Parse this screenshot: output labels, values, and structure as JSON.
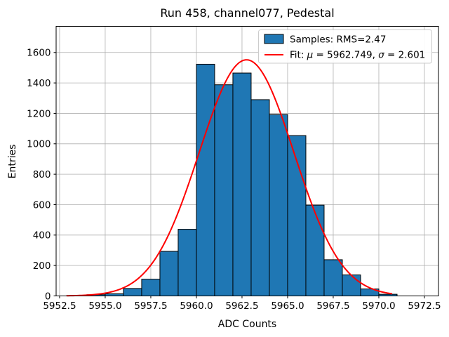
{
  "window": {
    "background": "#ffffff"
  },
  "chart_data": {
    "type": "bar",
    "subtype": "histogram",
    "title": "Run 458, channel077, Pedestal",
    "xlabel": "ADC Counts",
    "ylabel": "Entries",
    "bin_edges": [
      5954,
      5955,
      5956,
      5957,
      5958,
      5959,
      5960,
      5961,
      5962,
      5963,
      5964,
      5965,
      5966,
      5967,
      5968,
      5969,
      5970,
      5971
    ],
    "counts": [
      8,
      14,
      49,
      110,
      293,
      438,
      1523,
      1388,
      1465,
      1290,
      1192,
      1054,
      597,
      238,
      138,
      46,
      11
    ],
    "samples_rms": 2.47,
    "fit": {
      "type": "gaussian",
      "mu": 5962.749,
      "sigma": 2.601,
      "amplitude": 1552,
      "x_start": 5952.9,
      "x_end": 5970.7
    },
    "xlim": [
      5952.31,
      5973.27
    ],
    "ylim": [
      0,
      1772
    ],
    "x_ticks": [
      5952.5,
      5955.0,
      5957.5,
      5960.0,
      5962.5,
      5965.0,
      5967.5,
      5970.0,
      5972.5
    ],
    "x_tick_labels": [
      "5952.5",
      "5955.0",
      "5957.5",
      "5960.0",
      "5962.5",
      "5965.0",
      "5967.5",
      "5970.0",
      "5972.5"
    ],
    "y_ticks": [
      0,
      200,
      400,
      600,
      800,
      1000,
      1200,
      1400,
      1600
    ],
    "y_tick_labels": [
      "0",
      "200",
      "400",
      "600",
      "800",
      "1000",
      "1200",
      "1400",
      "1600"
    ],
    "grid": true,
    "legend_position": "upper right"
  },
  "legend": {
    "samples_label": "Samples: RMS=2.47",
    "fit_pre": "Fit: ",
    "fit_mu_symbol": "μ",
    "fit_mid": " = 5962.749, ",
    "fit_sigma_symbol": "σ",
    "fit_post": " = 2.601"
  },
  "colors": {
    "bar_fill": "#1f77b4",
    "bar_edge": "#000000",
    "fit_line": "#ff0000",
    "grid_line": "#b0b0b0",
    "spine": "#000000",
    "legend_border": "#cccccc",
    "legend_background": "#ffffff",
    "text": "#000000"
  }
}
